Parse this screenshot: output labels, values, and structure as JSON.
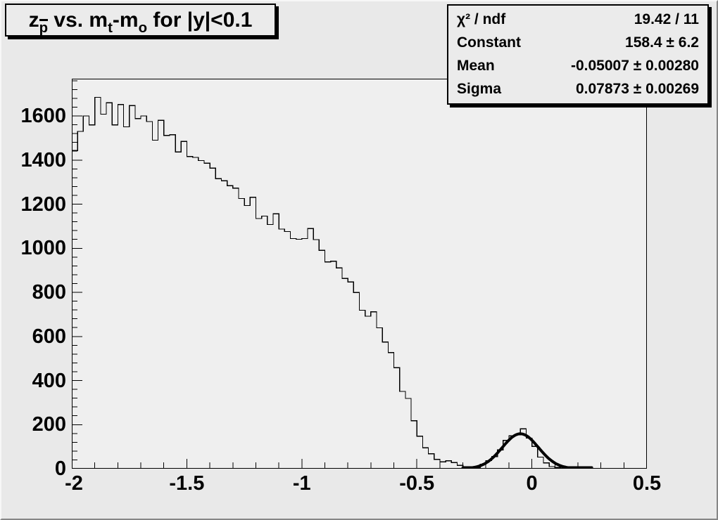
{
  "title": {
    "pre": "z",
    "sub_p": "p",
    "mid": " vs. m",
    "sub_t": "t",
    "dash": "-m",
    "sub_o": "o",
    "post": " for |y|<0.1"
  },
  "stats": {
    "rows": [
      {
        "label": "χ² / ndf",
        "value": "19.42 / 11"
      },
      {
        "label": "Constant",
        "value": "158.4 ± 6.2"
      },
      {
        "label": "Mean",
        "value": "-0.05007 ± 0.00280"
      },
      {
        "label": "Sigma",
        "value": "0.07873 ± 0.00269"
      }
    ]
  },
  "chart_data": {
    "type": "bar",
    "subtype": "step-histogram",
    "title": "z_p̄ vs. m_t-m_o for |y|<0.1",
    "xlabel": "",
    "ylabel": "",
    "xlim": [
      -2,
      0.5
    ],
    "ylim": [
      0,
      1769
    ],
    "bin_start": -2,
    "bin_width": 0.025,
    "bins": [
      1443,
      1530,
      1600,
      1560,
      1685,
      1608,
      1660,
      1560,
      1652,
      1551,
      1647,
      1588,
      1600,
      1575,
      1490,
      1580,
      1512,
      1515,
      1437,
      1485,
      1416,
      1412,
      1398,
      1386,
      1364,
      1316,
      1306,
      1284,
      1273,
      1226,
      1194,
      1231,
      1135,
      1146,
      1108,
      1156,
      1087,
      1076,
      1044,
      1041,
      1044,
      1089,
      1039,
      991,
      938,
      941,
      911,
      863,
      847,
      799,
      719,
      692,
      712,
      639,
      575,
      527,
      458,
      351,
      319,
      218,
      148,
      95,
      68,
      42,
      31,
      36,
      28,
      15,
      8,
      4,
      6,
      21,
      37,
      55,
      85,
      128,
      149,
      154,
      181,
      139,
      101,
      53,
      26,
      10,
      6,
      3,
      2,
      8,
      0,
      0,
      0,
      0,
      0,
      0,
      0,
      0,
      0,
      0,
      0,
      0
    ],
    "fit": {
      "type": "gaussian",
      "constant": 158.4,
      "mean": -0.05007,
      "sigma": 0.07873,
      "draw_range": [
        -0.3,
        0.26
      ]
    },
    "x_ticks": {
      "values": [
        -2,
        -1.5,
        -1,
        -0.5,
        0,
        0.5
      ],
      "labels": [
        "-2",
        "-1.5",
        "-1",
        "-0.5",
        "0",
        "0.5"
      ],
      "minor_step": 0.1
    },
    "y_ticks": {
      "values": [
        0,
        200,
        400,
        600,
        800,
        1000,
        1200,
        1400,
        1600
      ],
      "labels": [
        "0",
        "200",
        "400",
        "600",
        "800",
        "1000",
        "1200",
        "1400",
        "1600"
      ],
      "minor_step": 40
    },
    "legend": "none",
    "grid": false,
    "colors": {
      "line": "#000000",
      "fit_line": "#000000",
      "frame_bg": "#efefef",
      "canvas_bg": "#e9e9e9",
      "text": "#000000"
    }
  }
}
